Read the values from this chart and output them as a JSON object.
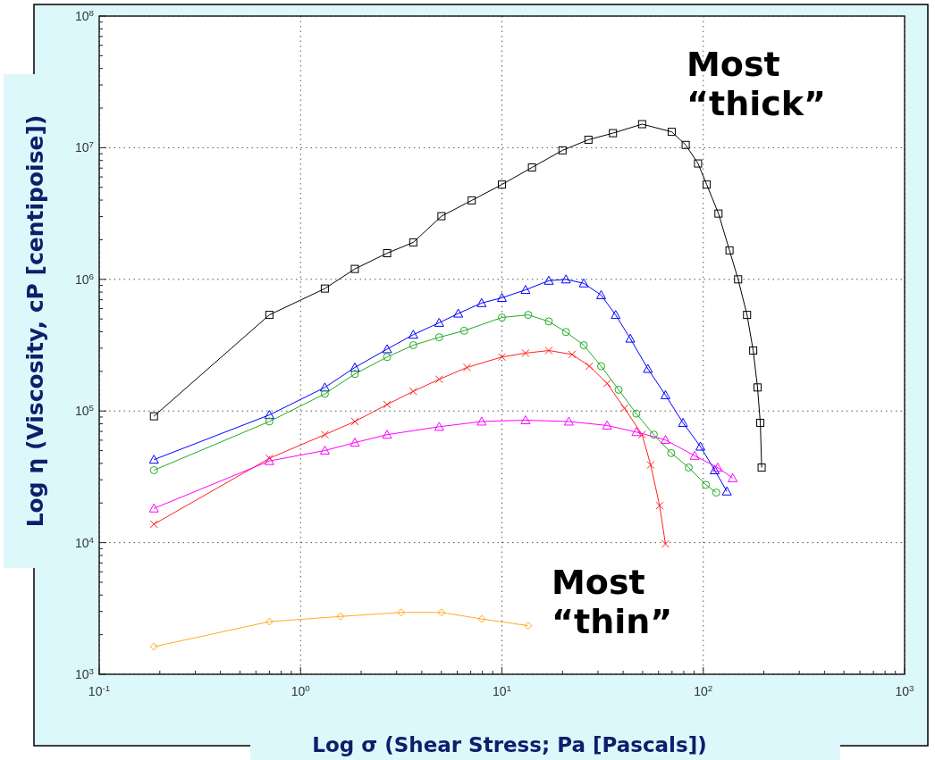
{
  "chart_data": {
    "type": "line",
    "xlabel": "Log σ (Shear Stress; Pa [Pascals])",
    "ylabel": "Log η (Viscosity, cP [centipoise])",
    "log": "xy",
    "grid": true,
    "xlim": [
      0.1,
      1000
    ],
    "ylim": [
      1000,
      100000000
    ],
    "xticks": [
      {
        "value": 0.1,
        "label": "10$^{-1}$"
      },
      {
        "value": 1,
        "label": "10$^{0}$"
      },
      {
        "value": 10,
        "label": "10$^{1}$"
      },
      {
        "value": 100,
        "label": "10$^{2}$"
      },
      {
        "value": 1000,
        "label": "10$^{3}$"
      }
    ],
    "yticks": [
      {
        "value": 1000,
        "label": "10$^{3}$"
      },
      {
        "value": 10000,
        "label": "10$^{4}$"
      },
      {
        "value": 100000,
        "label": "10$^{5}$"
      },
      {
        "value": 1000000,
        "label": "10$^{6}$"
      },
      {
        "value": 10000000,
        "label": "10$^{7}$"
      },
      {
        "value": 100000000,
        "label": "10$^{8}$"
      }
    ],
    "annotations": [
      "Most\n“thick”",
      "Most\n“thin”"
    ],
    "series": [
      {
        "color": "#000000",
        "marker": "square",
        "x": [
          0.187,
          0.7,
          1.32,
          1.86,
          2.69,
          3.63,
          5.01,
          7.08,
          10,
          14.1,
          20,
          26.9,
          35.6,
          49.7,
          69.7,
          81.8,
          94.2,
          104,
          119,
          135,
          149,
          165,
          177,
          186,
          192,
          195
        ],
        "values": [
          91200,
          537000,
          851000,
          1200000,
          1580000,
          1910000,
          3020000,
          3980000,
          5250000,
          7080000,
          9550000,
          11500000,
          12900000,
          15100000,
          13200000,
          10500000,
          7590000,
          5250000,
          3160000,
          1660000,
          1000000,
          537000,
          288000,
          151000,
          81300,
          37200
        ]
      },
      {
        "color": "#0000ff",
        "marker": "triangle",
        "x": [
          0.187,
          0.7,
          1.32,
          1.86,
          2.69,
          3.63,
          4.88,
          6.07,
          7.93,
          10,
          13.1,
          17.1,
          20.8,
          25.5,
          31.1,
          36.7,
          43.4,
          53.1,
          64.9,
          79.3,
          96.8,
          114,
          131
        ],
        "values": [
          42700,
          93300,
          151000,
          214000,
          295000,
          380000,
          468000,
          550000,
          661000,
          724000,
          832000,
          977000,
          1000000,
          933000,
          759000,
          537000,
          355000,
          209000,
          132000,
          81300,
          53700,
          35500,
          24500
        ]
      },
      {
        "color": "#22aa22",
        "marker": "circle",
        "x": [
          0.187,
          0.7,
          1.32,
          1.86,
          2.69,
          3.63,
          4.88,
          6.49,
          10,
          13.5,
          17.1,
          20.8,
          25.5,
          31.1,
          38,
          46.5,
          56.8,
          69.3,
          84.7,
          103,
          116
        ],
        "values": [
          35500,
          83200,
          135000,
          191000,
          257000,
          316000,
          363000,
          407000,
          513000,
          537000,
          479000,
          398000,
          316000,
          219000,
          145000,
          95500,
          66100,
          47900,
          37200,
          27500,
          24000
        ]
      },
      {
        "color": "#ff2020",
        "marker": "cross",
        "x": [
          0.187,
          0.7,
          1.32,
          1.86,
          2.69,
          3.63,
          4.88,
          6.7,
          10,
          13.1,
          17.1,
          22.3,
          27.2,
          33.3,
          40.6,
          49.7,
          54.8,
          60.7,
          64.9
        ],
        "values": [
          13800,
          43700,
          66100,
          83200,
          112000,
          141000,
          174000,
          214000,
          257000,
          275000,
          288000,
          269000,
          219000,
          162000,
          105000,
          66100,
          38900,
          19100,
          9770
        ]
      },
      {
        "color": "#ff00ff",
        "marker": "triangle",
        "x": [
          0.187,
          0.7,
          1.32,
          1.86,
          2.69,
          4.88,
          7.93,
          13.1,
          21.5,
          33.3,
          46.5,
          64.9,
          90.6,
          118,
          140
        ],
        "values": [
          18200,
          41700,
          50100,
          57500,
          66100,
          75900,
          83200,
          85100,
          83200,
          77600,
          69200,
          60300,
          45700,
          37200,
          30900
        ]
      },
      {
        "color": "#ffaa22",
        "marker": "diamond",
        "x": [
          0.187,
          0.7,
          1.58,
          3.16,
          5.01,
          7.94,
          13.5
        ],
        "values": [
          1620,
          2510,
          2750,
          2950,
          2950,
          2630,
          2340
        ]
      }
    ]
  }
}
